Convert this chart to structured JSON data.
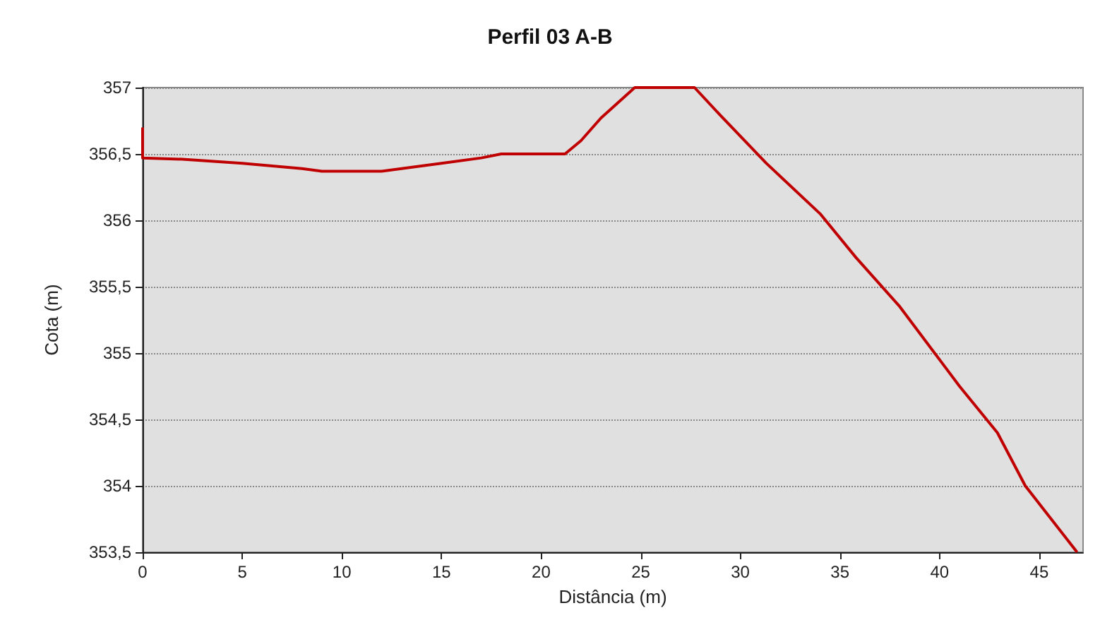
{
  "chart_data": {
    "type": "line",
    "title": "Perfil 03 A-B",
    "xlabel": "Distância (m)",
    "ylabel": "Cota (m)",
    "xlim": [
      0,
      47.2
    ],
    "xticks": [
      0,
      5,
      10,
      15,
      20,
      25,
      30,
      35,
      40,
      45
    ],
    "ylim": [
      353.5,
      357
    ],
    "yticks": [
      {
        "value": 353.5,
        "label": "353,5"
      },
      {
        "value": 354,
        "label": "354"
      },
      {
        "value": 354.5,
        "label": "354,5"
      },
      {
        "value": 355,
        "label": "355"
      },
      {
        "value": 355.5,
        "label": "355,5"
      },
      {
        "value": 356,
        "label": "356"
      },
      {
        "value": 356.5,
        "label": "356,5"
      },
      {
        "value": 357,
        "label": "357"
      }
    ],
    "grid": "y",
    "marker": "none",
    "line_style": "solid",
    "series": [
      {
        "color": "#c00000",
        "x": [
          0,
          0,
          2,
          5,
          8,
          9,
          12,
          13,
          15,
          17,
          18,
          21.2,
          22,
          23,
          24.7,
          27.7,
          29,
          31.3,
          34,
          35.8,
          38,
          40.1,
          41,
          42.9,
          44.3,
          46.9
        ],
        "values": [
          356.7,
          356.47,
          356.46,
          356.43,
          356.39,
          356.37,
          356.37,
          356.39,
          356.43,
          356.47,
          356.5,
          356.5,
          356.6,
          356.77,
          357,
          357,
          356.79,
          356.43,
          356.05,
          355.72,
          355.35,
          354.93,
          354.75,
          354.4,
          354.0,
          353.5
        ]
      }
    ]
  }
}
